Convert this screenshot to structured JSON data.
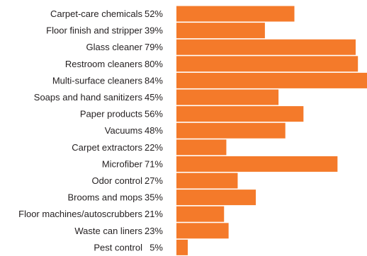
{
  "chart_data": {
    "type": "bar",
    "orientation": "horizontal",
    "categories": [
      "Carpet-care chemicals",
      "Floor finish and stripper",
      "Glass cleaner",
      "Restroom cleaners",
      "Multi-surface cleaners",
      "Soaps and hand sanitizers",
      "Paper products",
      "Vacuums",
      "Carpet extractors",
      "Microfiber",
      "Odor control",
      "Brooms and mops",
      "Floor machines/autoscrubbers",
      "Waste can liners",
      "Pest control"
    ],
    "values": [
      52,
      39,
      79,
      80,
      84,
      45,
      56,
      48,
      22,
      71,
      27,
      35,
      21,
      23,
      5
    ],
    "value_labels": [
      "52%",
      "39%",
      "79%",
      "80%",
      "84%",
      "45%",
      "56%",
      "48%",
      "22%",
      "71%",
      "27%",
      "35%",
      "21%",
      "23%",
      "5%"
    ],
    "unit": "%",
    "xlim": [
      0,
      84
    ],
    "bar_color": "#f47a2a",
    "grid": false,
    "legend": "none"
  }
}
